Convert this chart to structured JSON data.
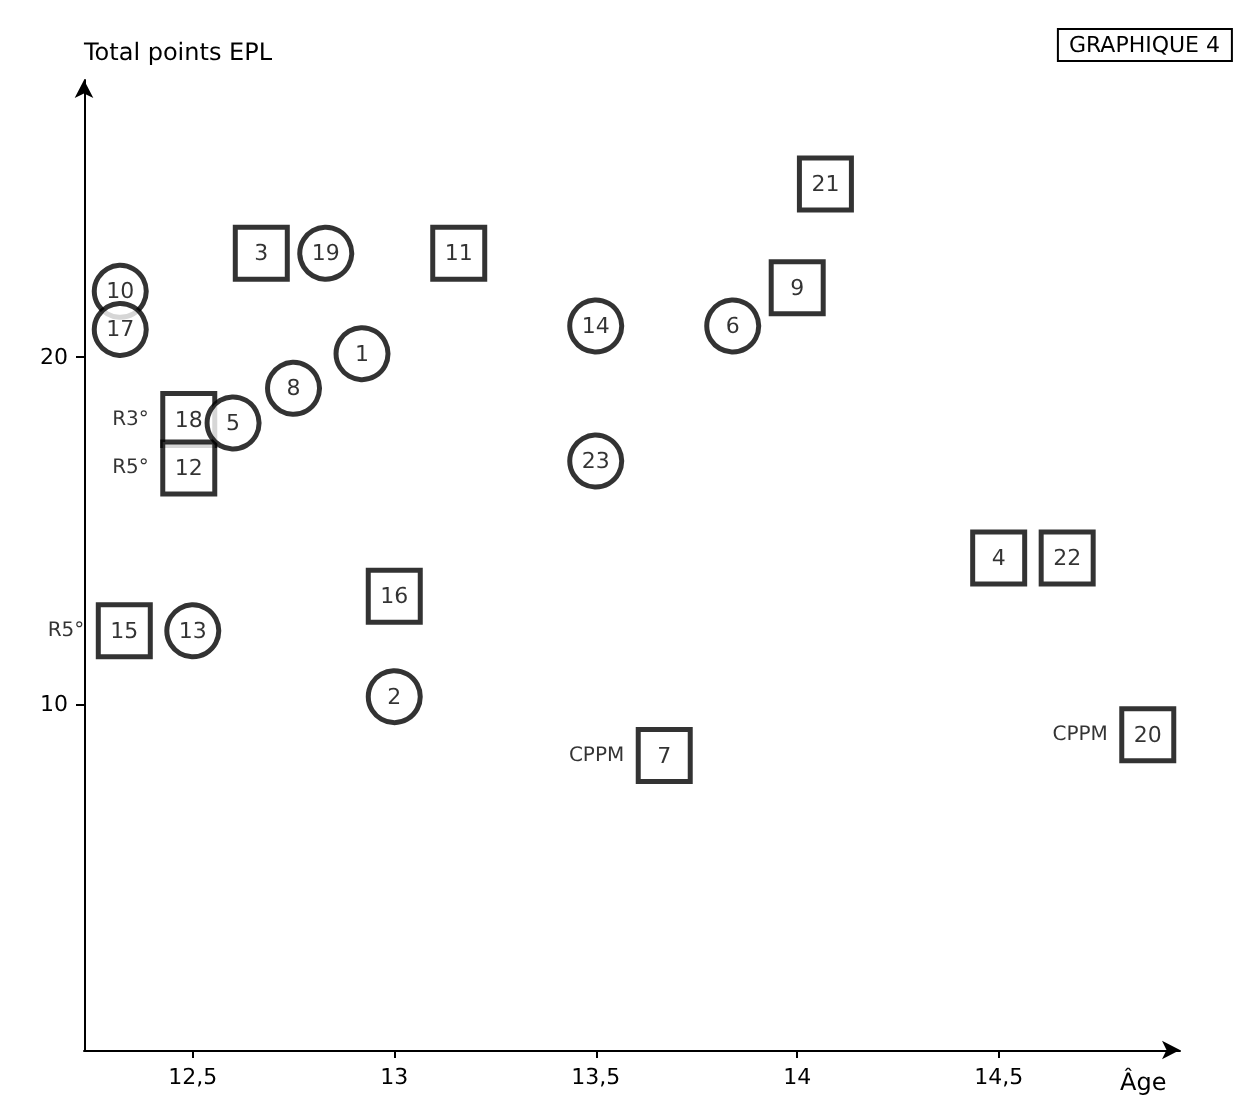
{
  "chart_data": {
    "type": "scatter",
    "title": "GRAPHIQUE 4",
    "xlabel": "Âge",
    "ylabel": "Total points EPL",
    "xlim": [
      12.23,
      14.95
    ],
    "ylim": [
      0,
      28
    ],
    "xticks": [
      {
        "value": 12.5,
        "label": "12,5"
      },
      {
        "value": 13,
        "label": "13"
      },
      {
        "value": 13.5,
        "label": "13,5"
      },
      {
        "value": 14,
        "label": "14"
      },
      {
        "value": 14.5,
        "label": "14,5"
      }
    ],
    "yticks": [
      10,
      20
    ],
    "grid": false,
    "series": [
      {
        "name": "3",
        "color": "#000000",
        "marker": "square",
        "x": [
          12.67
        ],
        "values": [
          23.0
        ]
      },
      {
        "name": "11",
        "color": "#000000",
        "marker": "square",
        "x": [
          13.16
        ],
        "values": [
          23.0
        ]
      },
      {
        "name": "21",
        "color": "#000000",
        "marker": "square",
        "x": [
          14.07
        ],
        "values": [
          25.0
        ]
      },
      {
        "name": "16",
        "color": "#000000",
        "marker": "square",
        "x": [
          13.0
        ],
        "values": [
          13.1
        ]
      },
      {
        "name": "7",
        "color": "#000000",
        "marker": "square",
        "x": [
          13.67
        ],
        "values": [
          8.5
        ]
      },
      {
        "name": "20",
        "color": "#000000",
        "marker": "square",
        "x": [
          14.87
        ],
        "values": [
          9.1
        ]
      },
      {
        "name": "4",
        "color": "#000000",
        "marker": "square",
        "x": [
          14.5
        ],
        "values": [
          14.2
        ]
      },
      {
        "name": "18",
        "color": "#000000",
        "marker": "square",
        "x": [
          12.49
        ],
        "values": [
          18.2
        ]
      },
      {
        "name": "12",
        "color": "#000000",
        "marker": "square",
        "x": [
          12.49
        ],
        "values": [
          16.8
        ]
      },
      {
        "name": "9",
        "color": "#000000",
        "marker": "square",
        "x": [
          14.0
        ],
        "values": [
          22.0
        ]
      },
      {
        "name": "22",
        "color": "#000000",
        "marker": "square",
        "x": [
          14.67
        ],
        "values": [
          14.2
        ]
      },
      {
        "name": "15",
        "color": "#000000",
        "marker": "square",
        "x": [
          12.33
        ],
        "values": [
          12.1
        ]
      },
      {
        "name": "1",
        "color": "#000000",
        "marker": "circle",
        "x": [
          12.92
        ],
        "values": [
          20.1
        ]
      },
      {
        "name": "10",
        "color": "#000000",
        "marker": "circle",
        "x": [
          12.32
        ],
        "values": [
          21.9
        ]
      },
      {
        "name": "17",
        "color": "#000000",
        "marker": "circle",
        "x": [
          12.32
        ],
        "values": [
          20.8
        ]
      },
      {
        "name": "19",
        "color": "#000000",
        "marker": "circle",
        "x": [
          12.83
        ],
        "values": [
          23.0
        ]
      },
      {
        "name": "8",
        "color": "#000000",
        "marker": "circle",
        "x": [
          12.75
        ],
        "values": [
          19.1
        ]
      },
      {
        "name": "5",
        "color": "#000000",
        "marker": "circle",
        "x": [
          12.6
        ],
        "values": [
          18.1
        ]
      },
      {
        "name": "14",
        "color": "#000000",
        "marker": "circle",
        "x": [
          13.5
        ],
        "values": [
          20.9
        ]
      },
      {
        "name": "23",
        "color": "#000000",
        "marker": "circle",
        "x": [
          13.5
        ],
        "values": [
          17.0
        ]
      },
      {
        "name": "6",
        "color": "#000000",
        "marker": "circle",
        "x": [
          13.84
        ],
        "values": [
          20.9
        ]
      },
      {
        "name": "2",
        "color": "#000000",
        "marker": "circle",
        "x": [
          13.0
        ],
        "values": [
          10.2
        ]
      },
      {
        "name": "13",
        "color": "#000000",
        "marker": "circle",
        "x": [
          12.5
        ],
        "values": [
          12.1
        ]
      }
    ],
    "annotations": [
      {
        "text": "R3°",
        "x": 12.49,
        "y": 18.2
      },
      {
        "text": "R5°",
        "x": 12.49,
        "y": 16.8
      },
      {
        "text": "R5°",
        "x": 12.33,
        "y": 12.1
      },
      {
        "text": "CPPM",
        "x": 13.67,
        "y": 8.5
      },
      {
        "text": "CPPM",
        "x": 14.87,
        "y": 9.1
      }
    ]
  }
}
